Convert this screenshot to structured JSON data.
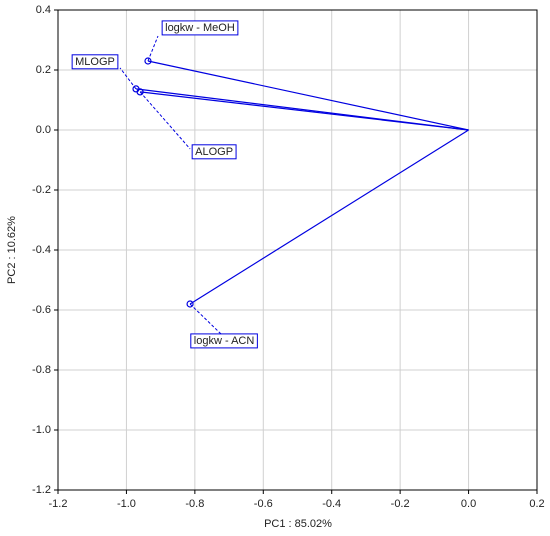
{
  "chart_data": {
    "type": "scatter",
    "x_label": "PC1 : 85.02%",
    "y_label": "PC2 : 10.62%",
    "labels": [
      "logkw - MeOH",
      "MLOGP",
      "ALOGP",
      "logkw - ACN"
    ],
    "x": [
      -0.937,
      -0.972,
      -0.96,
      -0.814
    ],
    "values": [
      0.23,
      0.137,
      0.127,
      -0.58
    ],
    "color": "#0000e0",
    "xlim": [
      -1.2,
      0.2
    ],
    "xticks": [
      -1.2,
      {
        "value": -1.0,
        "label": "-1.0"
      },
      -0.8,
      -0.6,
      -0.4,
      -0.2,
      {
        "value": 0.0,
        "label": "0.0"
      },
      0.2
    ],
    "ylim": [
      -1.2,
      0.4
    ],
    "yticks": [
      0.4,
      0.2,
      {
        "value": 0.0,
        "label": "0.0"
      },
      -0.2,
      -0.4,
      -0.6,
      -0.8,
      {
        "value": -1.0,
        "label": "-1.0"
      },
      -1.2
    ],
    "grid": true
  }
}
